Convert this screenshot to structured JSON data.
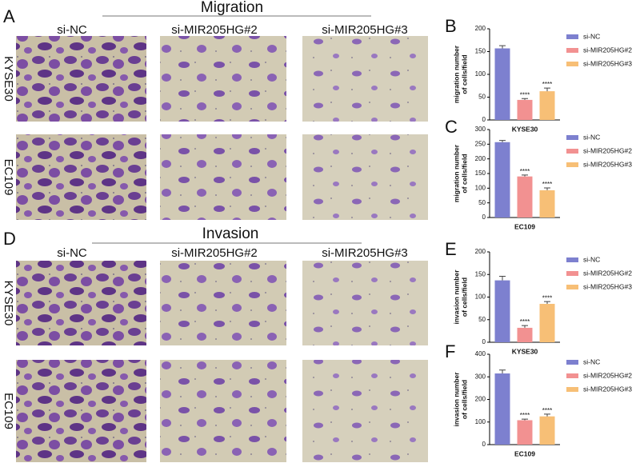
{
  "figure": {
    "panels": [
      "A",
      "D"
    ],
    "sections": [
      "Migration",
      "Invasion"
    ],
    "columns": [
      "si-NC",
      "si-MIR205HG#2",
      "si-MIR205HG#3"
    ],
    "rows": [
      "KYSE30",
      "EC109"
    ]
  },
  "chart_data": [
    {
      "type": "bar",
      "panel": "B",
      "xlabel": "KYSE30",
      "ylabel": [
        "migration number",
        "of cells/field"
      ],
      "ylim": [
        0,
        200
      ],
      "yticks": [
        0,
        50,
        100,
        150,
        200
      ],
      "series": [
        {
          "name": "si-NC",
          "color": "#7d80cf",
          "values": [
            157
          ],
          "errors": [
            6
          ]
        },
        {
          "name": "si-MIR205HG#2",
          "color": "#f29191",
          "values": [
            44
          ],
          "errors": [
            3
          ],
          "label": "****"
        },
        {
          "name": "si-MIR205HG#3",
          "color": "#f7bf76",
          "values": [
            63
          ],
          "errors": [
            7
          ],
          "label": "****"
        }
      ]
    },
    {
      "type": "bar",
      "panel": "C",
      "xlabel": "EC109",
      "ylabel": [
        "migration number",
        "of cells/field"
      ],
      "ylim": [
        0,
        300
      ],
      "yticks": [
        0,
        50,
        100,
        150,
        200,
        250,
        300
      ],
      "series": [
        {
          "name": "si-NC",
          "color": "#7d80cf",
          "values": [
            257
          ],
          "errors": [
            6
          ]
        },
        {
          "name": "si-MIR205HG#2",
          "color": "#f29191",
          "values": [
            140
          ],
          "errors": [
            5
          ],
          "label": "****"
        },
        {
          "name": "si-MIR205HG#3",
          "color": "#f7bf76",
          "values": [
            93
          ],
          "errors": [
            8
          ],
          "label": "****"
        }
      ]
    },
    {
      "type": "bar",
      "panel": "E",
      "xlabel": "KYSE30",
      "ylabel": [
        "invasion number",
        "of cells/field"
      ],
      "ylim": [
        0,
        200
      ],
      "yticks": [
        0,
        50,
        100,
        150,
        200
      ],
      "series": [
        {
          "name": "si-NC",
          "color": "#7d80cf",
          "values": [
            137
          ],
          "errors": [
            9
          ]
        },
        {
          "name": "si-MIR205HG#2",
          "color": "#f29191",
          "values": [
            32
          ],
          "errors": [
            5
          ],
          "label": "****"
        },
        {
          "name": "si-MIR205HG#3",
          "color": "#f7bf76",
          "values": [
            85
          ],
          "errors": [
            5
          ],
          "label": "****"
        }
      ]
    },
    {
      "type": "bar",
      "panel": "F",
      "xlabel": "EC109",
      "ylabel": [
        "invasion number",
        "of cells/field"
      ],
      "ylim": [
        0,
        400
      ],
      "yticks": [
        0,
        100,
        200,
        300,
        400
      ],
      "series": [
        {
          "name": "si-NC",
          "color": "#7d80cf",
          "values": [
            315
          ],
          "errors": [
            15
          ]
        },
        {
          "name": "si-MIR205HG#2",
          "color": "#f29191",
          "values": [
            108
          ],
          "errors": [
            5
          ],
          "label": "****"
        },
        {
          "name": "si-MIR205HG#3",
          "color": "#f7bf76",
          "values": [
            125
          ],
          "errors": [
            10
          ],
          "label": "****"
        }
      ]
    }
  ]
}
